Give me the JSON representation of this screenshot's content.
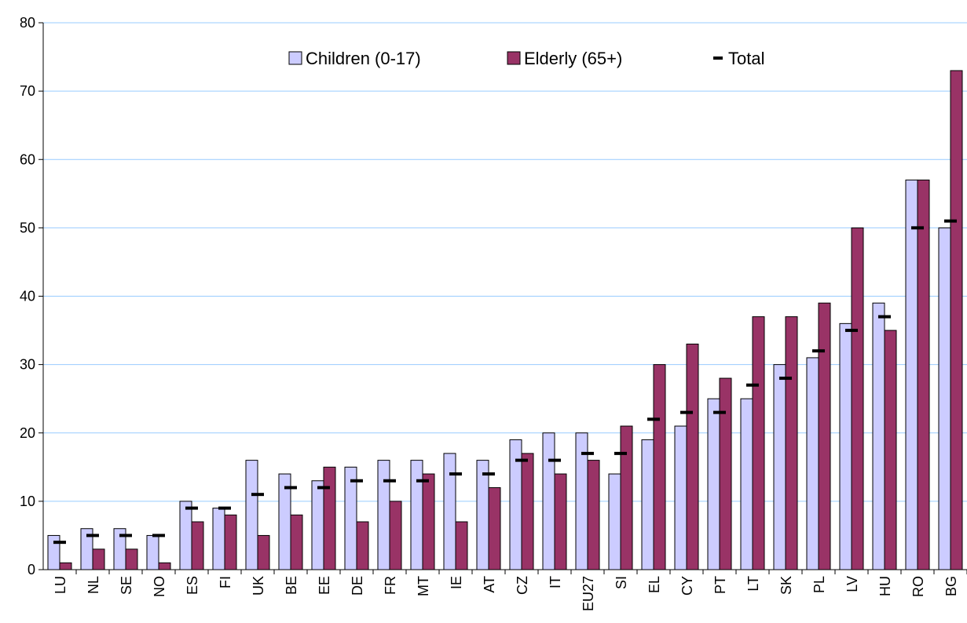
{
  "chart_data": {
    "type": "bar",
    "categories": [
      "LU",
      "NL",
      "SE",
      "NO",
      "ES",
      "FI",
      "UK",
      "BE",
      "EE",
      "DE",
      "FR",
      "MT",
      "IE",
      "AT",
      "CZ",
      "IT",
      "EU27",
      "SI",
      "EL",
      "CY",
      "PT",
      "LT",
      "SK",
      "PL",
      "LV",
      "HU",
      "RO",
      "BG"
    ],
    "series": [
      {
        "name": "Children (0-17)",
        "kind": "bar",
        "color": "#CCCCFF",
        "values": [
          5,
          6,
          6,
          5,
          10,
          9,
          16,
          14,
          13,
          15,
          16,
          16,
          17,
          16,
          19,
          20,
          20,
          14,
          19,
          21,
          25,
          25,
          30,
          31,
          36,
          39,
          57,
          50
        ]
      },
      {
        "name": "Elderly (65+)",
        "kind": "bar",
        "color": "#993366",
        "values": [
          1,
          3,
          3,
          1,
          7,
          8,
          5,
          8,
          15,
          7,
          10,
          14,
          7,
          12,
          17,
          14,
          16,
          21,
          30,
          33,
          28,
          37,
          37,
          39,
          50,
          35,
          57,
          73
        ]
      },
      {
        "name": "Total",
        "kind": "marker",
        "color": "#000000",
        "values": [
          4,
          5,
          5,
          5,
          9,
          9,
          11,
          12,
          12,
          13,
          13,
          13,
          14,
          14,
          16,
          16,
          17,
          17,
          22,
          23,
          23,
          27,
          28,
          32,
          35,
          37,
          50,
          51
        ]
      }
    ],
    "ylim": [
      0,
      80
    ],
    "yticks": [
      0,
      10,
      20,
      30,
      40,
      50,
      60,
      70,
      80
    ],
    "title": "",
    "xlabel": "",
    "ylabel": "",
    "grid": true,
    "legend_position": "top"
  }
}
